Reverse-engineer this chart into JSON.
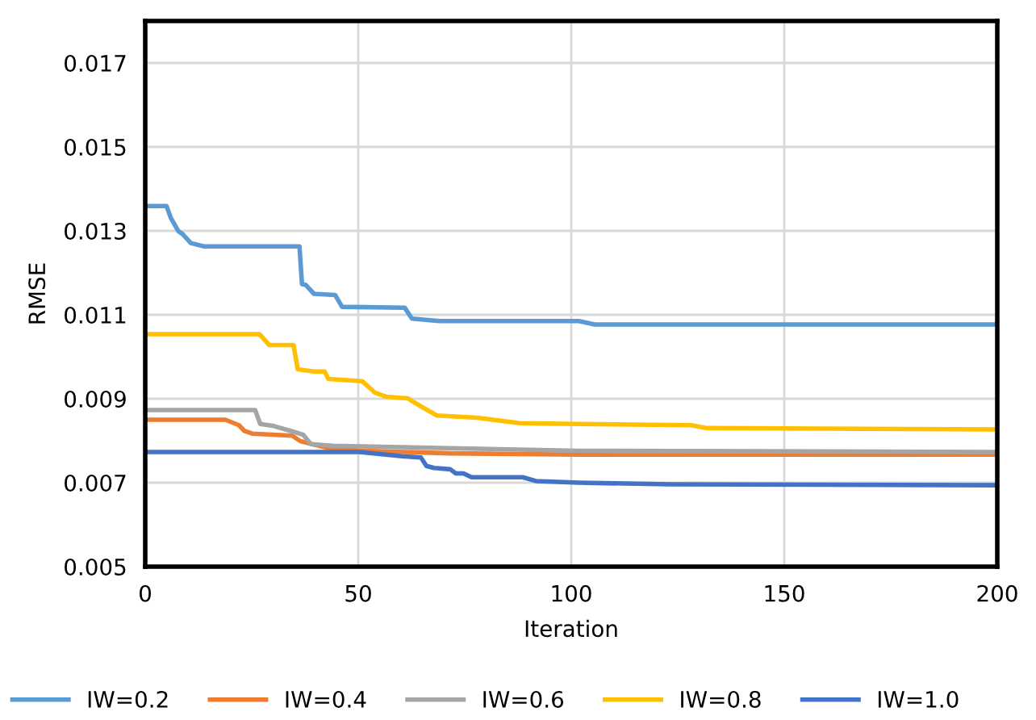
{
  "chart_data": {
    "type": "line",
    "xlabel": "Iteration",
    "ylabel": "RMSE",
    "xlim": [
      0,
      200
    ],
    "xticks": [
      0,
      50,
      100,
      150,
      200
    ],
    "ylim": [
      0.005,
      0.018
    ],
    "yticks": [
      0.005,
      0.007,
      0.009,
      0.011,
      0.013,
      0.015,
      0.017
    ],
    "grid": true,
    "legend": "bottom",
    "marker": "none",
    "line_style": "solid",
    "series": [
      {
        "name": "IW=0.2",
        "color": "#5b9bd5",
        "x": [
          0,
          5,
          6,
          7.8,
          8.8,
          10.7,
          13.8,
          36.2,
          36.8,
          37.7,
          39.6,
          44.6,
          46.2,
          60.9,
          62.6,
          69.1,
          101.8,
          105.5,
          200
        ],
        "values": [
          0.01359,
          0.01359,
          0.01331,
          0.01299,
          0.01292,
          0.01271,
          0.01263,
          0.01263,
          0.01173,
          0.01171,
          0.0115,
          0.01147,
          0.01119,
          0.01117,
          0.01091,
          0.01085,
          0.01085,
          0.01077,
          0.01077
        ]
      },
      {
        "name": "IW=0.4",
        "color": "#ed7d31",
        "x": [
          0,
          18.8,
          22.0,
          23.2,
          25.1,
          34.5,
          36.4,
          42.7,
          51.5,
          71.6,
          101.8,
          200
        ],
        "values": [
          0.0085,
          0.0085,
          0.00837,
          0.00824,
          0.00817,
          0.00812,
          0.00799,
          0.00783,
          0.00776,
          0.0077,
          0.00767,
          0.00767
        ]
      },
      {
        "name": "IW=0.6",
        "color": "#a5a5a5",
        "x": [
          0,
          25.8,
          27.0,
          30.2,
          33.9,
          37.1,
          38.9,
          44.0,
          101.8,
          200
        ],
        "values": [
          0.00873,
          0.00873,
          0.0084,
          0.00835,
          0.00824,
          0.00814,
          0.00792,
          0.00788,
          0.00776,
          0.00773
        ]
      },
      {
        "name": "IW=0.8",
        "color": "#ffc000",
        "x": [
          0,
          26.8,
          29.1,
          34.8,
          35.8,
          39.6,
          42.1,
          43.0,
          50.9,
          54.0,
          56.5,
          61.6,
          64.7,
          68.5,
          77.9,
          87.9,
          101.8,
          128.1,
          131.9,
          200
        ],
        "values": [
          0.01054,
          0.01054,
          0.01028,
          0.01028,
          0.0097,
          0.00965,
          0.00965,
          0.00947,
          0.00942,
          0.00914,
          0.00905,
          0.00901,
          0.00882,
          0.0086,
          0.00855,
          0.00842,
          0.0084,
          0.00837,
          0.0083,
          0.00827
        ]
      },
      {
        "name": "IW=1.0",
        "color": "#4472c4",
        "x": [
          0,
          50.3,
          60.3,
          64.7,
          66.0,
          67.8,
          71.6,
          72.9,
          74.7,
          76.6,
          88.6,
          91.7,
          101.8,
          123.1,
          200
        ],
        "values": [
          0.00773,
          0.00773,
          0.00763,
          0.0076,
          0.0074,
          0.00735,
          0.00732,
          0.00722,
          0.00722,
          0.00713,
          0.00713,
          0.00704,
          0.007,
          0.00696,
          0.00694
        ]
      }
    ]
  }
}
